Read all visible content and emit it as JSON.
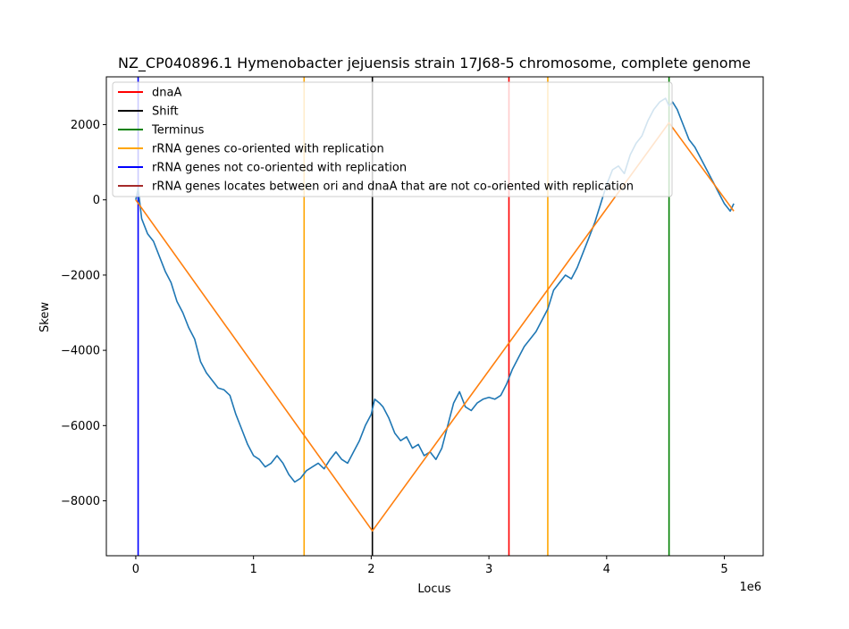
{
  "chart_data": {
    "type": "line",
    "title": "NZ_CP040896.1 Hymenobacter jejuensis strain 17J68-5 chromosome, complete genome",
    "xlabel": "Locus",
    "ylabel": "Skew",
    "x_offset_label": "1e6",
    "xlim": [
      -250000,
      5330000
    ],
    "ylim": [
      -9460,
      3270
    ],
    "x_ticks": [
      0,
      1000000,
      2000000,
      3000000,
      4000000,
      5000000
    ],
    "x_tick_labels": [
      "0",
      "1",
      "2",
      "3",
      "4",
      "5"
    ],
    "y_ticks": [
      -8000,
      -6000,
      -4000,
      -2000,
      0,
      2000
    ],
    "y_tick_labels": [
      "−8000",
      "−6000",
      "−4000",
      "−2000",
      "0",
      "2000"
    ],
    "legend_position": "top-left",
    "legend": [
      {
        "label": "dnaA",
        "color": "#ff0000"
      },
      {
        "label": "Shift",
        "color": "#000000"
      },
      {
        "label": "Terminus",
        "color": "#008000"
      },
      {
        "label": "rRNA genes co-oriented with replication",
        "color": "#ffa500"
      },
      {
        "label": "rRNA genes not co-oriented with replication",
        "color": "#0000ff"
      },
      {
        "label": "rRNA genes locates between ori and dnaA that are not co-oriented with replication",
        "color": "#a52a2a"
      }
    ],
    "vlines": [
      {
        "x": 20000,
        "color": "#0000ff"
      },
      {
        "x": 1430000,
        "color": "#ffa500"
      },
      {
        "x": 2010000,
        "color": "#000000"
      },
      {
        "x": 3170000,
        "color": "#ff0000"
      },
      {
        "x": 3500000,
        "color": "#ffa500"
      },
      {
        "x": 4530000,
        "color": "#008000"
      }
    ],
    "series": [
      {
        "color": "#1f77b4",
        "x": [
          0,
          20000,
          50000,
          100000,
          150000,
          200000,
          250000,
          300000,
          350000,
          400000,
          450000,
          500000,
          550000,
          600000,
          650000,
          700000,
          750000,
          800000,
          850000,
          900000,
          950000,
          1000000,
          1050000,
          1100000,
          1150000,
          1200000,
          1250000,
          1300000,
          1350000,
          1400000,
          1450000,
          1500000,
          1550000,
          1600000,
          1650000,
          1700000,
          1750000,
          1800000,
          1850000,
          1900000,
          1950000,
          2000000,
          2030000,
          2070000,
          2100000,
          2150000,
          2200000,
          2250000,
          2300000,
          2350000,
          2400000,
          2450000,
          2500000,
          2550000,
          2600000,
          2650000,
          2700000,
          2750000,
          2800000,
          2850000,
          2900000,
          2950000,
          3000000,
          3050000,
          3100000,
          3150000,
          3200000,
          3250000,
          3300000,
          3350000,
          3400000,
          3450000,
          3500000,
          3550000,
          3600000,
          3650000,
          3700000,
          3750000,
          3800000,
          3850000,
          3900000,
          3950000,
          4000000,
          4050000,
          4100000,
          4150000,
          4200000,
          4250000,
          4300000,
          4350000,
          4400000,
          4450000,
          4500000,
          4530000,
          4560000,
          4600000,
          4650000,
          4700000,
          4750000,
          4800000,
          4850000,
          4900000,
          4950000,
          5000000,
          5050000,
          5080000
        ],
        "y": [
          0,
          300,
          -500,
          -900,
          -1100,
          -1500,
          -1900,
          -2200,
          -2700,
          -3000,
          -3400,
          -3700,
          -4300,
          -4600,
          -4800,
          -5000,
          -5050,
          -5200,
          -5700,
          -6100,
          -6500,
          -6800,
          -6900,
          -7100,
          -7000,
          -6800,
          -7000,
          -7300,
          -7500,
          -7400,
          -7200,
          -7100,
          -7000,
          -7150,
          -6900,
          -6700,
          -6900,
          -7000,
          -6700,
          -6400,
          -6000,
          -5700,
          -5300,
          -5400,
          -5500,
          -5800,
          -6200,
          -6400,
          -6300,
          -6600,
          -6500,
          -6800,
          -6700,
          -6900,
          -6600,
          -6000,
          -5400,
          -5100,
          -5500,
          -5600,
          -5400,
          -5300,
          -5250,
          -5300,
          -5200,
          -4900,
          -4500,
          -4200,
          -3900,
          -3700,
          -3500,
          -3200,
          -2900,
          -2400,
          -2200,
          -2000,
          -2100,
          -1800,
          -1400,
          -1000,
          -600,
          -100,
          400,
          800,
          900,
          700,
          1200,
          1500,
          1700,
          2100,
          2400,
          2600,
          2700,
          2500,
          2600,
          2400,
          2000,
          1600,
          1400,
          1100,
          800,
          500,
          200,
          -100,
          -300,
          -100
        ]
      },
      {
        "color": "#ff7f0e",
        "x": [
          0,
          2010000,
          4530000,
          5080000
        ],
        "y": [
          0,
          -8800,
          2050,
          -300
        ]
      }
    ]
  }
}
